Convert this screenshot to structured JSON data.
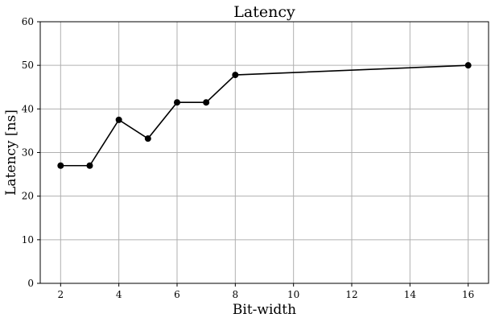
{
  "chart_data": {
    "type": "line",
    "title": "Latency",
    "xlabel": "Bit-width",
    "ylabel": "Latency [ns]",
    "xlim": [
      1.3,
      16.7
    ],
    "ylim": [
      0,
      60
    ],
    "xticks": [
      2,
      4,
      6,
      8,
      10,
      12,
      14,
      16
    ],
    "yticks": [
      0,
      10,
      20,
      30,
      40,
      50,
      60
    ],
    "grid": true,
    "legend": "none",
    "series": [
      {
        "color": "#000000",
        "marker": "circle",
        "x": [
          2,
          3,
          4,
          5,
          6,
          7,
          8,
          16
        ],
        "y": [
          27.0,
          27.0,
          37.5,
          33.2,
          41.5,
          41.5,
          47.8,
          50.0
        ]
      }
    ]
  }
}
